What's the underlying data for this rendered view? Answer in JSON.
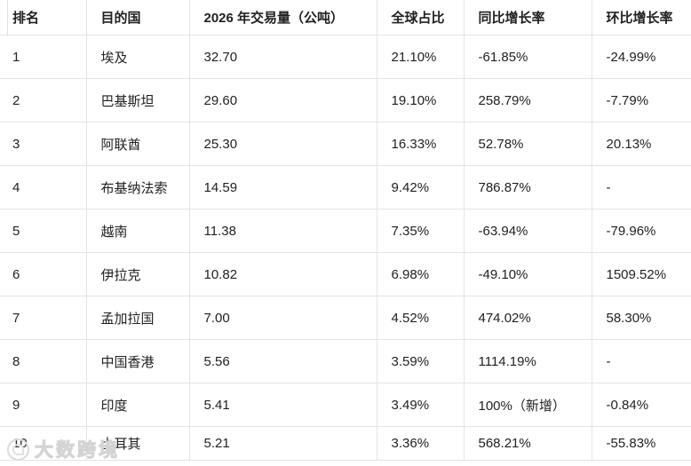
{
  "chart_data": {
    "type": "table",
    "columns": [
      "排名",
      "目的国",
      "2026 年交易量（公吨）",
      "全球占比",
      "同比增长率",
      "环比增长率"
    ],
    "rows": [
      [
        "1",
        "埃及",
        "32.70",
        "21.10%",
        "-61.85%",
        "-24.99%"
      ],
      [
        "2",
        "巴基斯坦",
        "29.60",
        "19.10%",
        "258.79%",
        "-7.79%"
      ],
      [
        "3",
        "阿联酋",
        "25.30",
        "16.33%",
        "52.78%",
        "20.13%"
      ],
      [
        "4",
        "布基纳法索",
        "14.59",
        "9.42%",
        "786.87%",
        "-"
      ],
      [
        "5",
        "越南",
        "11.38",
        "7.35%",
        "-63.94%",
        "-79.96%"
      ],
      [
        "6",
        "伊拉克",
        "10.82",
        "6.98%",
        "-49.10%",
        "1509.52%"
      ],
      [
        "7",
        "孟加拉国",
        "7.00",
        "4.52%",
        "474.02%",
        "58.30%"
      ],
      [
        "8",
        "中国香港",
        "5.56",
        "3.59%",
        "1114.19%",
        "-"
      ],
      [
        "9",
        "印度",
        "5.41",
        "3.49%",
        "100%（新增）",
        "-0.84%"
      ],
      [
        "10",
        "土耳其",
        "5.21",
        "3.36%",
        "568.21%",
        "-55.83%"
      ]
    ],
    "legend": "none",
    "grid": "full-grid-light-gray"
  },
  "watermark": {
    "logo_icon": "watermark-logo-icon",
    "text": "大数跨境"
  },
  "colors": {
    "background": "#ffffff",
    "border": "#e4e4e4",
    "text": "#212121",
    "header_text": "#1a1a1a",
    "watermark": "#d9d9d9"
  }
}
